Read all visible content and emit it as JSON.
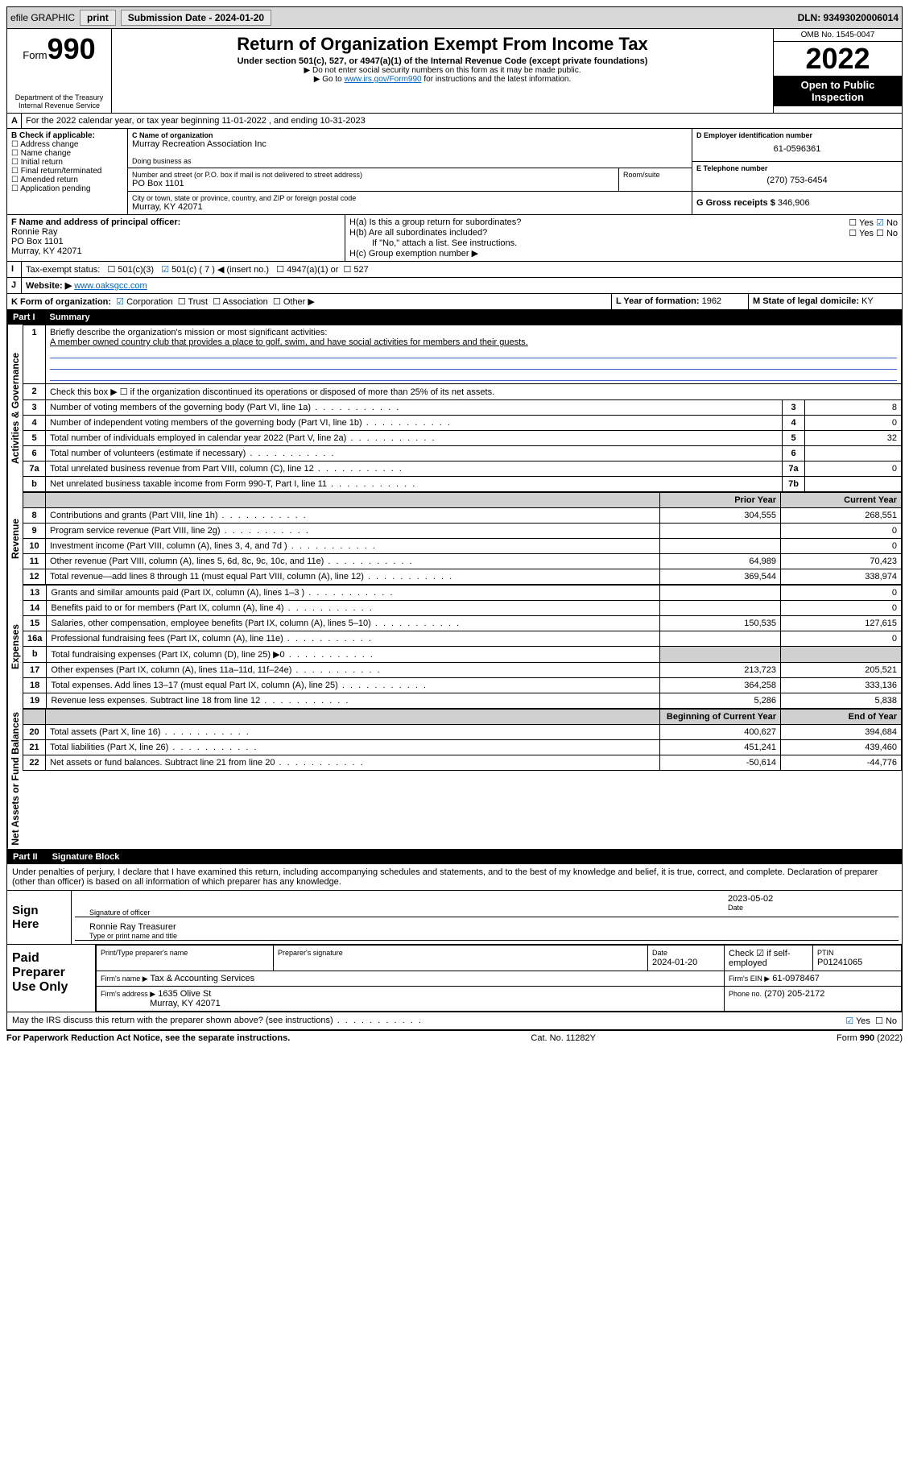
{
  "topbar": {
    "efile": "efile GRAPHIC",
    "print": "print",
    "sub_label": "Submission Date - 2024-01-20",
    "dln": "DLN: 93493020006014"
  },
  "header": {
    "form_word": "Form",
    "form_num": "990",
    "dept": "Department of the Treasury",
    "irs": "Internal Revenue Service",
    "title": "Return of Organization Exempt From Income Tax",
    "subtitle": "Under section 501(c), 527, or 4947(a)(1) of the Internal Revenue Code (except private foundations)",
    "note1": "▶ Do not enter social security numbers on this form as it may be made public.",
    "note2_pre": "▶ Go to ",
    "note2_link": "www.irs.gov/Form990",
    "note2_post": " for instructions and the latest information.",
    "omb": "OMB No. 1545-0047",
    "year": "2022",
    "open": "Open to Public Inspection"
  },
  "rowA": {
    "text": "For the 2022 calendar year, or tax year beginning 11-01-2022    , and ending 10-31-2023"
  },
  "rowB": {
    "label": "B Check if applicable:",
    "opts": [
      "Address change",
      "Name change",
      "Initial return",
      "Final return/terminated",
      "Amended return",
      "Application pending"
    ],
    "c_label": "C Name of organization",
    "org": "Murray Recreation Association Inc",
    "dba": "Doing business as",
    "addr_label": "Number and street (or P.O. box if mail is not delivered to street address)",
    "room": "Room/suite",
    "addr": "PO Box 1101",
    "city_label": "City or town, state or province, country, and ZIP or foreign postal code",
    "city": "Murray, KY  42071",
    "d_label": "D Employer identification number",
    "ein": "61-0596361",
    "e_label": "E Telephone number",
    "phone": "(270) 753-6454",
    "g_label": "G Gross receipts $",
    "gross": "346,906"
  },
  "rowF": {
    "f_label": "F Name and address of principal officer:",
    "name": "Ronnie Ray",
    "addr": "PO Box 1101",
    "city": "Murray, KY  42071",
    "ha": "H(a)  Is this a group return for subordinates?",
    "hb": "H(b)  Are all subordinates included?",
    "hb_note": "If \"No,\" attach a list. See instructions.",
    "hc": "H(c)  Group exemption number ▶",
    "yes": "Yes",
    "no": "No"
  },
  "rowI": {
    "label": "Tax-exempt status:",
    "o1": "501(c)(3)",
    "o2": "501(c) ( 7 ) ◀ (insert no.)",
    "o3": "4947(a)(1) or",
    "o4": "527"
  },
  "rowJ": {
    "label": "Website: ▶",
    "url": "www.oaksgcc.com"
  },
  "rowK": {
    "label": "K Form of organization:",
    "opts": [
      "Corporation",
      "Trust",
      "Association",
      "Other ▶"
    ],
    "l_label": "L Year of formation:",
    "l_val": "1962",
    "m_label": "M State of legal domicile:",
    "m_val": "KY"
  },
  "part1": {
    "label": "Part I",
    "title": "Summary",
    "q1": "Briefly describe the organization's mission or most significant activities:",
    "mission": "A member owned country club that provides a place to golf, swim, and have social activities for members and their guests.",
    "q2": "Check this box ▶ ☐  if the organization discontinued its operations or disposed of more than 25% of its net assets.",
    "lines_gov": [
      {
        "n": "3",
        "t": "Number of voting members of the governing body (Part VI, line 1a)",
        "box": "3",
        "v": "8"
      },
      {
        "n": "4",
        "t": "Number of independent voting members of the governing body (Part VI, line 1b)",
        "box": "4",
        "v": "0"
      },
      {
        "n": "5",
        "t": "Total number of individuals employed in calendar year 2022 (Part V, line 2a)",
        "box": "5",
        "v": "32"
      },
      {
        "n": "6",
        "t": "Total number of volunteers (estimate if necessary)",
        "box": "6",
        "v": ""
      },
      {
        "n": "7a",
        "t": "Total unrelated business revenue from Part VIII, column (C), line 12",
        "box": "7a",
        "v": "0"
      },
      {
        "n": "b",
        "t": "Net unrelated business taxable income from Form 990-T, Part I, line 11",
        "box": "7b",
        "v": ""
      }
    ],
    "col_prior": "Prior Year",
    "col_curr": "Current Year",
    "rev": [
      {
        "n": "8",
        "t": "Contributions and grants (Part VIII, line 1h)",
        "p": "304,555",
        "c": "268,551"
      },
      {
        "n": "9",
        "t": "Program service revenue (Part VIII, line 2g)",
        "p": "",
        "c": "0"
      },
      {
        "n": "10",
        "t": "Investment income (Part VIII, column (A), lines 3, 4, and 7d )",
        "p": "",
        "c": "0"
      },
      {
        "n": "11",
        "t": "Other revenue (Part VIII, column (A), lines 5, 6d, 8c, 9c, 10c, and 11e)",
        "p": "64,989",
        "c": "70,423"
      },
      {
        "n": "12",
        "t": "Total revenue—add lines 8 through 11 (must equal Part VIII, column (A), line 12)",
        "p": "369,544",
        "c": "338,974"
      }
    ],
    "exp": [
      {
        "n": "13",
        "t": "Grants and similar amounts paid (Part IX, column (A), lines 1–3 )",
        "p": "",
        "c": "0"
      },
      {
        "n": "14",
        "t": "Benefits paid to or for members (Part IX, column (A), line 4)",
        "p": "",
        "c": "0"
      },
      {
        "n": "15",
        "t": "Salaries, other compensation, employee benefits (Part IX, column (A), lines 5–10)",
        "p": "150,535",
        "c": "127,615"
      },
      {
        "n": "16a",
        "t": "Professional fundraising fees (Part IX, column (A), line 11e)",
        "p": "",
        "c": "0"
      },
      {
        "n": "b",
        "t": "Total fundraising expenses (Part IX, column (D), line 25) ▶0",
        "p": "",
        "c": "",
        "shade": true
      },
      {
        "n": "17",
        "t": "Other expenses (Part IX, column (A), lines 11a–11d, 11f–24e)",
        "p": "213,723",
        "c": "205,521"
      },
      {
        "n": "18",
        "t": "Total expenses. Add lines 13–17 (must equal Part IX, column (A), line 25)",
        "p": "364,258",
        "c": "333,136"
      },
      {
        "n": "19",
        "t": "Revenue less expenses. Subtract line 18 from line 12",
        "p": "5,286",
        "c": "5,838"
      }
    ],
    "col_beg": "Beginning of Current Year",
    "col_end": "End of Year",
    "net": [
      {
        "n": "20",
        "t": "Total assets (Part X, line 16)",
        "p": "400,627",
        "c": "394,684"
      },
      {
        "n": "21",
        "t": "Total liabilities (Part X, line 26)",
        "p": "451,241",
        "c": "439,460"
      },
      {
        "n": "22",
        "t": "Net assets or fund balances. Subtract line 21 from line 20",
        "p": "-50,614",
        "c": "-44,776"
      }
    ]
  },
  "part2": {
    "label": "Part II",
    "title": "Signature Block",
    "decl": "Under penalties of perjury, I declare that I have examined this return, including accompanying schedules and statements, and to the best of my knowledge and belief, it is true, correct, and complete. Declaration of preparer (other than officer) is based on all information of which preparer has any knowledge.",
    "sign_here": "Sign Here",
    "sig_officer": "Signature of officer",
    "sig_date": "2023-05-02",
    "date_lbl": "Date",
    "officer_name": "Ronnie Ray Treasurer",
    "officer_name_lbl": "Type or print name and title",
    "paid": "Paid Preparer Use Only",
    "prep_name_lbl": "Print/Type preparer's name",
    "prep_sig_lbl": "Preparer's signature",
    "prep_date_lbl": "Date",
    "prep_date": "2024-01-20",
    "self_emp": "Check ☑ if self-employed",
    "ptin_lbl": "PTIN",
    "ptin": "P01241065",
    "firm_name_lbl": "Firm's name    ▶",
    "firm_name": "Tax & Accounting Services",
    "firm_ein_lbl": "Firm's EIN ▶",
    "firm_ein": "61-0978467",
    "firm_addr_lbl": "Firm's address ▶",
    "firm_addr": "1635 Olive St",
    "firm_city": "Murray, KY  42071",
    "firm_phone_lbl": "Phone no.",
    "firm_phone": "(270) 205-2172",
    "discuss": "May the IRS discuss this return with the preparer shown above? (see instructions)"
  },
  "footer": {
    "pra": "For Paperwork Reduction Act Notice, see the separate instructions.",
    "cat": "Cat. No. 11282Y",
    "form": "Form 990 (2022)"
  },
  "vlabels": {
    "gov": "Activities & Governance",
    "rev": "Revenue",
    "exp": "Expenses",
    "net": "Net Assets or Fund Balances"
  }
}
